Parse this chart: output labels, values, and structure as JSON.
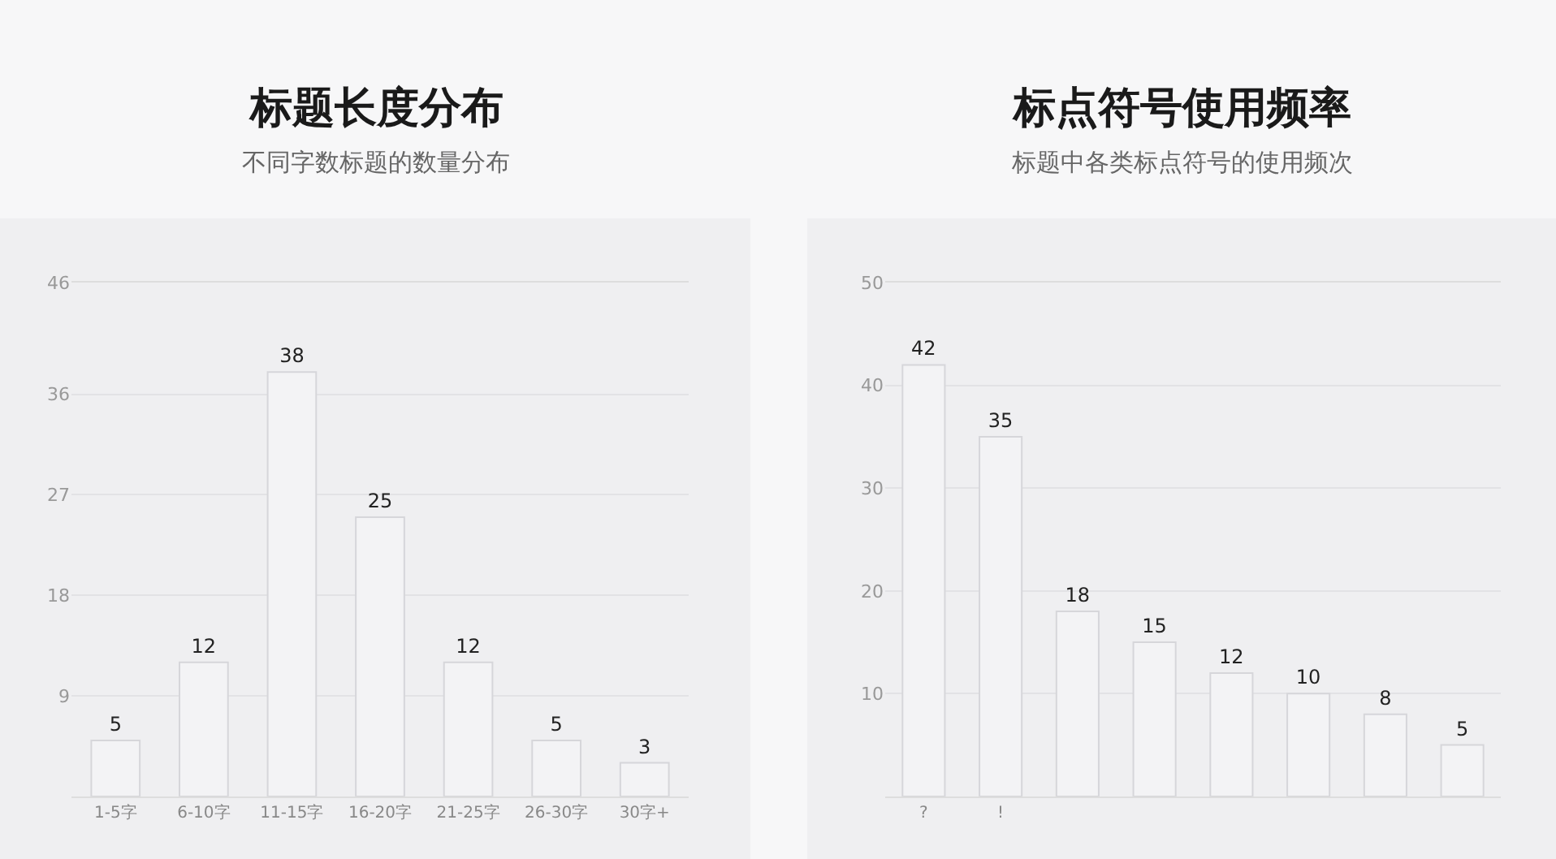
{
  "chart_data": [
    {
      "type": "bar",
      "title": "标题长度分布",
      "subtitle": "不同字数标题的数量分布",
      "categories": [
        "1-5字",
        "6-10字",
        "11-15字",
        "16-20字",
        "21-25字",
        "26-30字",
        "30字+"
      ],
      "values": [
        5,
        12,
        38,
        25,
        12,
        5,
        3
      ],
      "color": "#f3f3f5",
      "ylim": [
        0,
        46
      ],
      "yticks": [
        9,
        18,
        27,
        36,
        46
      ],
      "grid": "y",
      "data_labels": true
    },
    {
      "type": "bar",
      "title": "标点符号使用频率",
      "subtitle": "标题中各类标点符号的使用频次",
      "categories": [
        "?",
        "!",
        null,
        null,
        null,
        null,
        null,
        null
      ],
      "values": [
        42,
        35,
        18,
        15,
        12,
        10,
        8,
        5
      ],
      "color": "#f3f3f5",
      "ylim": [
        0,
        50
      ],
      "yticks": [
        10,
        20,
        30,
        40,
        50
      ],
      "grid": "y",
      "data_labels": true
    }
  ]
}
